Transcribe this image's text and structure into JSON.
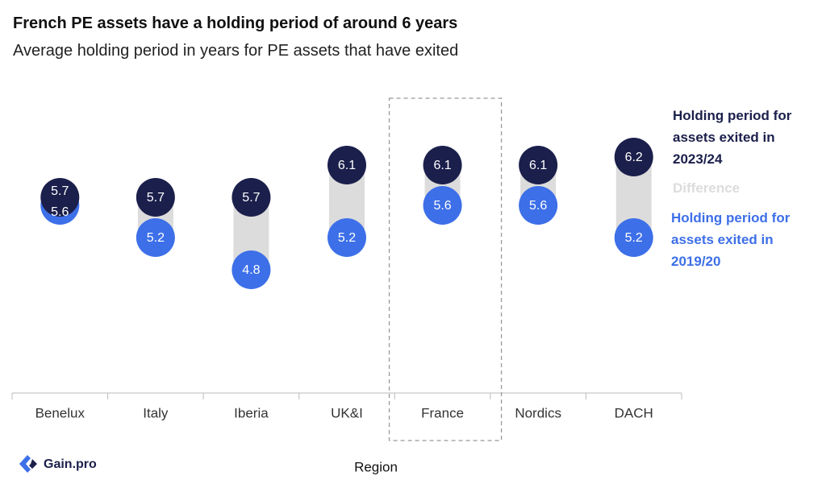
{
  "chart_data": {
    "type": "dumbbell",
    "title": "French PE assets have a holding period of around 6 years",
    "subtitle": "Average holding period in years for PE assets that have exited",
    "categories": [
      "Benelux",
      "Italy",
      "Iberia",
      "UK&I",
      "France",
      "Nordics",
      "DACH"
    ],
    "series": [
      {
        "name": "Holding period for assets exited in 2023/24",
        "color": "#1b1f4b",
        "values": [
          5.7,
          5.7,
          5.7,
          6.1,
          6.1,
          6.1,
          6.2
        ]
      },
      {
        "name": "Holding period for assets exited in 2019/20",
        "color": "#3d6fe8",
        "values": [
          5.6,
          5.2,
          4.8,
          5.2,
          5.6,
          5.6,
          5.2
        ]
      }
    ],
    "difference": {
      "name": "Difference",
      "color": "#dcdcdc"
    },
    "highlight_category": "France",
    "xlabel": "Region",
    "ylim": [
      3.27,
      7.15
    ],
    "logo": "Gain.pro"
  }
}
